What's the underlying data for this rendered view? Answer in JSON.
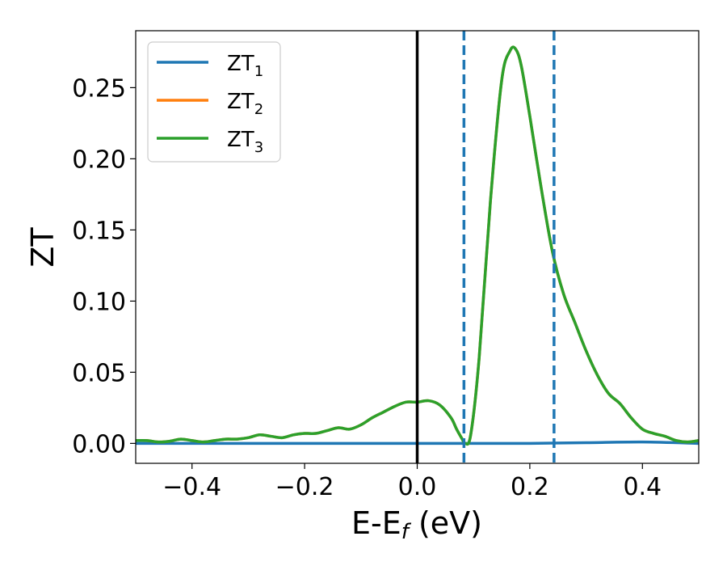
{
  "chart_data": {
    "type": "line",
    "xlabel_main": "E-E",
    "xlabel_sub": "f",
    "xlabel_unit": " (eV)",
    "ylabel": "ZT",
    "xlim": [
      -0.5,
      0.5
    ],
    "ylim": [
      -0.014,
      0.29
    ],
    "x_ticks": [
      -0.4,
      -0.2,
      0.0,
      0.2,
      0.4
    ],
    "x_tick_labels": [
      "−0.4",
      "−0.2",
      "0.0",
      "0.2",
      "0.4"
    ],
    "y_ticks": [
      0.0,
      0.05,
      0.1,
      0.15,
      0.2,
      0.25
    ],
    "y_tick_labels": [
      "0.00",
      "0.05",
      "0.10",
      "0.15",
      "0.20",
      "0.25"
    ],
    "grid": false,
    "legend_position": "top-left",
    "vertical_lines": [
      {
        "x": 0.0,
        "style": "solid",
        "color": "#000000"
      },
      {
        "x": 0.083,
        "style": "dashed",
        "color": "#1f77b4"
      },
      {
        "x": 0.243,
        "style": "dashed",
        "color": "#1f77b4"
      }
    ],
    "series": [
      {
        "name_main": "ZT",
        "name_sub": "1",
        "color": "#1f77b4",
        "x": [
          -0.5,
          -0.3,
          -0.1,
          0.0,
          0.1,
          0.2,
          0.3,
          0.4,
          0.5
        ],
        "y": [
          0.0,
          0.0,
          0.0,
          0.0,
          0.0,
          0.0,
          0.0005,
          0.001,
          0.0
        ]
      },
      {
        "name_main": "ZT",
        "name_sub": "2",
        "color": "#ff7f0e",
        "x": [
          -0.5,
          -0.48,
          -0.46,
          -0.44,
          -0.42,
          -0.4,
          -0.38,
          -0.36,
          -0.34,
          -0.32,
          -0.3,
          -0.28,
          -0.26,
          -0.24,
          -0.22,
          -0.2,
          -0.18,
          -0.16,
          -0.14,
          -0.12,
          -0.1,
          -0.08,
          -0.06,
          -0.04,
          -0.02,
          0.0,
          0.02,
          0.04,
          0.06,
          0.07,
          0.08,
          0.085,
          0.095,
          0.11,
          0.13,
          0.15,
          0.165,
          0.175,
          0.185,
          0.2,
          0.22,
          0.24,
          0.26,
          0.28,
          0.3,
          0.32,
          0.34,
          0.36,
          0.38,
          0.4,
          0.42,
          0.44,
          0.46,
          0.48,
          0.5
        ],
        "y": [
          0.002,
          0.002,
          0.001,
          0.0015,
          0.003,
          0.002,
          0.001,
          0.002,
          0.003,
          0.003,
          0.004,
          0.006,
          0.005,
          0.004,
          0.006,
          0.007,
          0.007,
          0.009,
          0.011,
          0.01,
          0.013,
          0.018,
          0.022,
          0.026,
          0.029,
          0.029,
          0.03,
          0.027,
          0.018,
          0.01,
          0.003,
          0.0,
          0.006,
          0.06,
          0.17,
          0.255,
          0.276,
          0.277,
          0.265,
          0.23,
          0.18,
          0.135,
          0.105,
          0.085,
          0.065,
          0.048,
          0.035,
          0.028,
          0.018,
          0.01,
          0.007,
          0.005,
          0.002,
          0.001,
          0.002
        ]
      },
      {
        "name_main": "ZT",
        "name_sub": "3",
        "color": "#2ca02c",
        "x": [
          -0.5,
          -0.48,
          -0.46,
          -0.44,
          -0.42,
          -0.4,
          -0.38,
          -0.36,
          -0.34,
          -0.32,
          -0.3,
          -0.28,
          -0.26,
          -0.24,
          -0.22,
          -0.2,
          -0.18,
          -0.16,
          -0.14,
          -0.12,
          -0.1,
          -0.08,
          -0.06,
          -0.04,
          -0.02,
          0.0,
          0.02,
          0.04,
          0.06,
          0.07,
          0.08,
          0.085,
          0.095,
          0.11,
          0.13,
          0.15,
          0.165,
          0.175,
          0.185,
          0.2,
          0.22,
          0.24,
          0.26,
          0.28,
          0.3,
          0.32,
          0.34,
          0.36,
          0.38,
          0.4,
          0.42,
          0.44,
          0.46,
          0.48,
          0.5
        ],
        "y": [
          0.002,
          0.002,
          0.001,
          0.0015,
          0.003,
          0.002,
          0.001,
          0.002,
          0.003,
          0.003,
          0.004,
          0.006,
          0.005,
          0.004,
          0.006,
          0.007,
          0.007,
          0.009,
          0.011,
          0.01,
          0.013,
          0.018,
          0.022,
          0.026,
          0.029,
          0.029,
          0.03,
          0.027,
          0.018,
          0.01,
          0.003,
          0.0,
          0.006,
          0.06,
          0.17,
          0.255,
          0.276,
          0.277,
          0.265,
          0.23,
          0.18,
          0.135,
          0.105,
          0.085,
          0.065,
          0.048,
          0.035,
          0.028,
          0.018,
          0.01,
          0.007,
          0.005,
          0.002,
          0.001,
          0.002
        ]
      }
    ]
  }
}
